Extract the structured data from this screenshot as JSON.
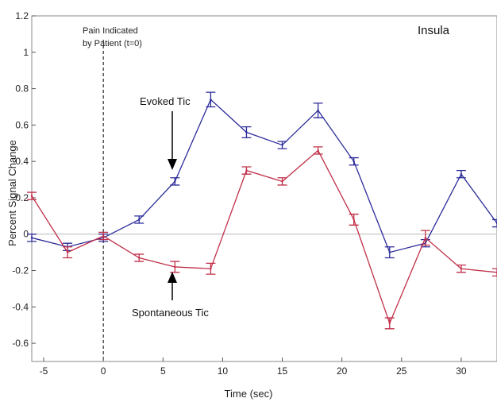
{
  "chart_data": {
    "type": "line",
    "title": "Insula",
    "xlabel": "Time (sec)",
    "ylabel": "Percent Signal Change",
    "xlim": [
      -6,
      33
    ],
    "ylim": [
      -0.7,
      1.2
    ],
    "xticks": [
      -5,
      0,
      5,
      10,
      15,
      20,
      25,
      30
    ],
    "yticks": [
      1.2,
      1,
      0.8,
      0.6,
      0.4,
      0.2,
      0,
      -0.2,
      -0.4,
      -0.6
    ],
    "zero_line": true,
    "marker_line_x": 0,
    "series": [
      {
        "name": "Evoked Tic",
        "color": "#2b2b9a",
        "x": [
          -6,
          -3,
          0,
          3,
          6,
          9,
          12,
          15,
          18,
          21,
          24,
          27,
          30,
          33
        ],
        "y": [
          -0.02,
          -0.07,
          -0.02,
          0.08,
          0.29,
          0.74,
          0.56,
          0.49,
          0.68,
          0.4,
          -0.1,
          -0.05,
          0.33,
          0.06
        ],
        "err": [
          0.02,
          0.02,
          0.02,
          0.02,
          0.02,
          0.04,
          0.03,
          0.02,
          0.04,
          0.02,
          0.03,
          0.02,
          0.02,
          0.02
        ]
      },
      {
        "name": "Spontaneous Tic",
        "color": "#c0304a",
        "x": [
          -6,
          -3,
          0,
          3,
          6,
          9,
          12,
          15,
          18,
          21,
          24,
          27,
          30,
          33
        ],
        "y": [
          0.21,
          -0.1,
          -0.01,
          -0.13,
          -0.18,
          -0.19,
          0.35,
          0.29,
          0.46,
          0.08,
          -0.49,
          -0.02,
          -0.19,
          -0.21
        ],
        "err": [
          0.02,
          0.03,
          0.02,
          0.02,
          0.03,
          0.03,
          0.02,
          0.02,
          0.02,
          0.03,
          0.03,
          0.04,
          0.02,
          0.02
        ]
      }
    ],
    "annotations": {
      "pain_line1": "Pain Indicated",
      "pain_line2": "by Patient (t=0)",
      "evoked_label": "Evoked Tic",
      "spontaneous_label": "Spontaneous Tic"
    }
  }
}
